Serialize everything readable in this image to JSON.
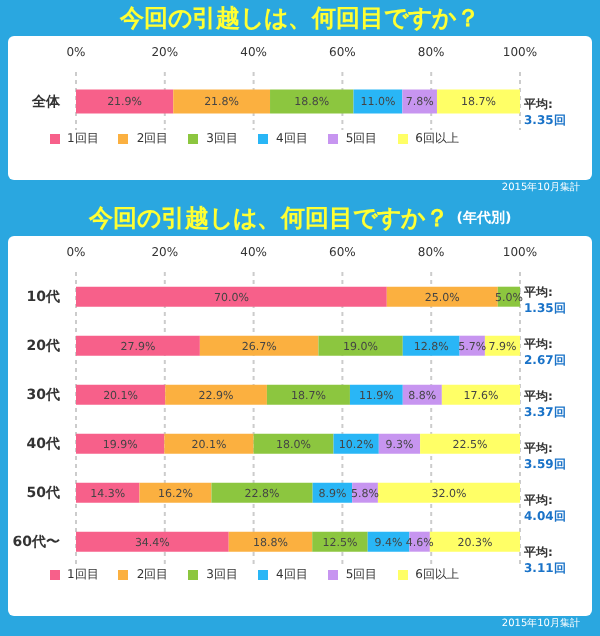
{
  "chart_data": [
    {
      "type": "bar",
      "orientation": "horizontal",
      "stacked": true,
      "title": "今回の引越しは、何回目ですか？",
      "categories": [
        "全体"
      ],
      "series": [
        {
          "name": "1回目",
          "color": "#f7608a",
          "values": [
            21.9
          ],
          "value_labels": [
            "21.9%"
          ]
        },
        {
          "name": "2回目",
          "color": "#fbb040",
          "values": [
            21.8
          ],
          "value_labels": [
            "21.8%"
          ]
        },
        {
          "name": "3回目",
          "color": "#8cc63f",
          "values": [
            18.8
          ],
          "value_labels": [
            "18.8%"
          ]
        },
        {
          "name": "4回目",
          "color": "#29b6f6",
          "values": [
            11.0
          ],
          "value_labels": [
            "11.0%"
          ]
        },
        {
          "name": "5回目",
          "color": "#c795f0",
          "values": [
            7.8
          ],
          "value_labels": [
            "7.8%"
          ]
        },
        {
          "name": "6回以上",
          "color": "#ffff66",
          "values": [
            18.7
          ],
          "value_labels": [
            "18.7%"
          ]
        }
      ],
      "xlim": [
        0,
        100
      ],
      "xticks": [
        {
          "value": 0,
          "label": "0%"
        },
        {
          "value": 20,
          "label": "20%"
        },
        {
          "value": 40,
          "label": "40%"
        },
        {
          "value": 60,
          "label": "60%"
        },
        {
          "value": 80,
          "label": "80%"
        },
        {
          "value": 100,
          "label": "100%"
        }
      ],
      "grid": "x",
      "legend": "bottom",
      "annotations": [
        "平均: 3.35回",
        "2015年10月集計"
      ]
    },
    {
      "type": "bar",
      "orientation": "horizontal",
      "stacked": true,
      "title": "今回の引越しは、何回目ですか？",
      "subtitle": "(年代別)",
      "categories": [
        "10代",
        "20代",
        "30代",
        "40代",
        "50代",
        "60代〜"
      ],
      "series": [
        {
          "name": "1回目",
          "color": "#f7608a",
          "values": [
            70.0,
            27.9,
            20.1,
            19.9,
            14.3,
            34.4
          ],
          "value_labels": [
            "70.0%",
            "27.9%",
            "20.1%",
            "19.9%",
            "14.3%",
            "34.4%"
          ]
        },
        {
          "name": "2回目",
          "color": "#fbb040",
          "values": [
            25.0,
            26.7,
            22.9,
            20.1,
            16.2,
            18.8
          ],
          "value_labels": [
            "25.0%",
            "26.7%",
            "22.9%",
            "20.1%",
            "16.2%",
            "18.8%"
          ]
        },
        {
          "name": "3回目",
          "color": "#8cc63f",
          "values": [
            5.0,
            19.0,
            18.7,
            18.0,
            22.8,
            12.5
          ],
          "value_labels": [
            "5.0%",
            "19.0%",
            "18.7%",
            "18.0%",
            "22.8%",
            "12.5%"
          ]
        },
        {
          "name": "4回目",
          "color": "#29b6f6",
          "values": [
            null,
            12.8,
            11.9,
            10.2,
            8.9,
            9.4
          ],
          "value_labels": [
            null,
            "12.8%",
            "11.9%",
            "10.2%",
            "8.9%",
            "9.4%"
          ]
        },
        {
          "name": "5回目",
          "color": "#c795f0",
          "values": [
            null,
            5.7,
            8.8,
            9.3,
            5.8,
            4.6
          ],
          "value_labels": [
            null,
            "5.7%",
            "8.8%",
            "9.3%",
            "5.8%",
            "4.6%"
          ]
        },
        {
          "name": "6回以上",
          "color": "#ffff66",
          "values": [
            null,
            7.9,
            17.6,
            22.5,
            32.0,
            20.3
          ],
          "value_labels": [
            null,
            "7.9%",
            "17.6%",
            "22.5%",
            "32.0%",
            "20.3%"
          ]
        }
      ],
      "xlim": [
        0,
        100
      ],
      "xticks": [
        {
          "value": 0,
          "label": "0%"
        },
        {
          "value": 20,
          "label": "20%"
        },
        {
          "value": 40,
          "label": "40%"
        },
        {
          "value": 60,
          "label": "60%"
        },
        {
          "value": 80,
          "label": "80%"
        },
        {
          "value": 100,
          "label": "100%"
        }
      ],
      "grid": "x",
      "legend": "bottom",
      "annotations": [
        "平均: 1.35回",
        "平均: 2.67回",
        "平均: 3.37回",
        "平均: 3.59回",
        "平均: 4.04回",
        "平均: 3.11回",
        "2015年10月集計"
      ]
    }
  ]
}
